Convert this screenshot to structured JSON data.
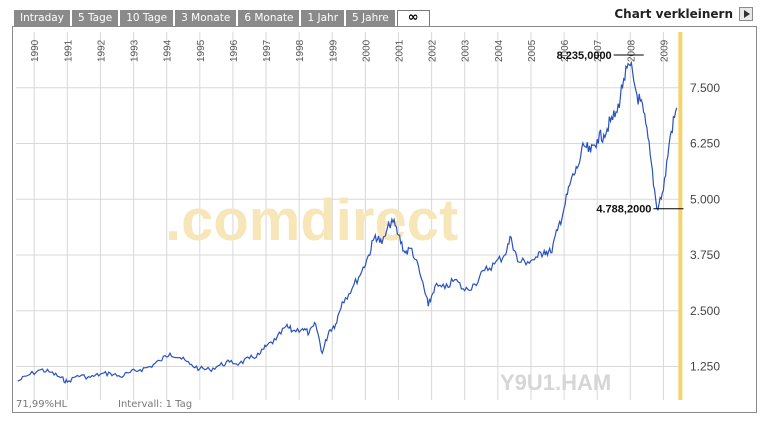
{
  "tabs": [
    {
      "label": "Intraday"
    },
    {
      "label": "5 Tage"
    },
    {
      "label": "10 Tage"
    },
    {
      "label": "3 Monate"
    },
    {
      "label": "6 Monate"
    },
    {
      "label": "1 Jahr"
    },
    {
      "label": "5 Jahre"
    },
    {
      "label": "∞"
    }
  ],
  "shrink_label": "Chart verkleinern",
  "watermark": ".comdirect",
  "symbol": "Y9U1.HAM",
  "footer": {
    "hl": "71,99%HL",
    "interval": "Intervall: 1 Tag"
  },
  "colors": {
    "line": "#2a52be",
    "marker": "#f5d36a",
    "watermark": "#f6e6b8",
    "grid": "#d8d8d8"
  },
  "chart_data": {
    "type": "line",
    "x_ticks": [
      "1990",
      "1991",
      "1992",
      "1993",
      "1994",
      "1995",
      "1996",
      "1997",
      "1998",
      "1999",
      "2000",
      "2001",
      "2002",
      "2003",
      "2004",
      "2005",
      "2006",
      "2007",
      "2008",
      "2009"
    ],
    "y_ticks": [
      "1.250",
      "2.500",
      "3.750",
      "5.000",
      "6.250",
      "7.500"
    ],
    "ylim": [
      500,
      8750
    ],
    "xlim": [
      1989.45,
      2009.5
    ],
    "annotations": [
      {
        "label": "8.235,0000",
        "x": 2007.8,
        "y": 8235
      },
      {
        "label": "4.788,2000",
        "x": 2009.0,
        "y": 4788
      }
    ],
    "series": [
      {
        "x": [
          1989.5,
          1989.8,
          1990.2,
          1990.5,
          1990.8,
          1991.0,
          1991.3,
          1991.7,
          1992.0,
          1992.3,
          1992.6,
          1992.9,
          1993.2,
          1993.5,
          1993.8,
          1994.1,
          1994.4,
          1994.7,
          1995.0,
          1995.3,
          1995.6,
          1995.9,
          1996.2,
          1996.5,
          1996.8,
          1997.0,
          1997.3,
          1997.6,
          1997.8,
          1998.1,
          1998.3,
          1998.5,
          1998.7,
          1998.9,
          1999.1,
          1999.3,
          1999.6,
          1999.9,
          2000.1,
          2000.3,
          2000.5,
          2000.8,
          2001.0,
          2001.2,
          2001.4,
          2001.7,
          2001.9,
          2002.1,
          2002.4,
          2002.7,
          2003.0,
          2003.3,
          2003.6,
          2003.9,
          2004.2,
          2004.4,
          2004.6,
          2004.9,
          2005.2,
          2005.4,
          2005.6,
          2005.8,
          2006.0,
          2006.2,
          2006.4,
          2006.6,
          2006.8,
          2007.0,
          2007.2,
          2007.4,
          2007.6,
          2007.8,
          2008.0,
          2008.2,
          2008.4,
          2008.6,
          2008.8,
          2009.0,
          2009.2,
          2009.4
        ],
        "y": [
          920,
          1050,
          1180,
          1120,
          1000,
          900,
          1050,
          1010,
          1080,
          1100,
          1020,
          1120,
          1180,
          1250,
          1380,
          1550,
          1450,
          1300,
          1200,
          1180,
          1280,
          1350,
          1320,
          1430,
          1520,
          1700,
          1850,
          2150,
          2050,
          2100,
          2000,
          2200,
          1550,
          2050,
          2200,
          2700,
          3000,
          3400,
          3750,
          4200,
          4000,
          4550,
          4200,
          3800,
          3900,
          3200,
          2600,
          3050,
          3000,
          3200,
          2950,
          3100,
          3400,
          3550,
          3750,
          4150,
          3600,
          3600,
          3700,
          3850,
          3800,
          4300,
          4800,
          5400,
          5700,
          6200,
          6050,
          6350,
          6450,
          6750,
          6950,
          7700,
          8000,
          7350,
          6950,
          6000,
          4800,
          5200,
          6400,
          7050
        ]
      }
    ]
  }
}
